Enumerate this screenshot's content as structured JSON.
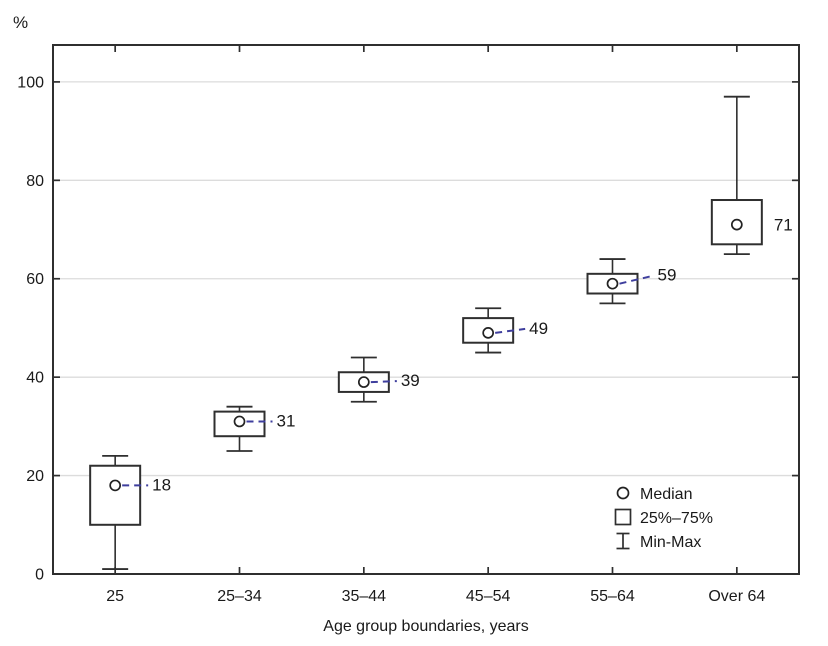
{
  "chart_data": {
    "type": "boxplot",
    "y_unit_label": "%",
    "xlabel": "Age group boundaries, years",
    "categories": [
      "25",
      "25–34",
      "35–44",
      "45–54",
      "55–64",
      "Over 64"
    ],
    "y_ticks": [
      0,
      20,
      40,
      60,
      80,
      100
    ],
    "ylim": [
      0,
      107.5
    ],
    "grid": "horizontal",
    "series": [
      {
        "category": "25",
        "min": 1,
        "q1": 10,
        "median": 18,
        "q3": 22,
        "max": 24,
        "median_label": "18",
        "connector": true
      },
      {
        "category": "25–34",
        "min": 25,
        "q1": 28,
        "median": 31,
        "q3": 33,
        "max": 34,
        "median_label": "31",
        "connector": true
      },
      {
        "category": "35–44",
        "min": 35,
        "q1": 37,
        "median": 39,
        "q3": 41,
        "max": 44,
        "median_label": "39",
        "connector": true
      },
      {
        "category": "45–54",
        "min": 45,
        "q1": 47,
        "median": 49,
        "q3": 52,
        "max": 54,
        "median_label": "49",
        "connector": true
      },
      {
        "category": "55–64",
        "min": 55,
        "q1": 57,
        "median": 59,
        "q3": 61,
        "max": 64,
        "median_label": "59",
        "connector": true
      },
      {
        "category": "Over 64",
        "min": 65,
        "q1": 67,
        "median": 71,
        "q3": 76,
        "max": 97,
        "median_label": "71",
        "connector": false
      }
    ],
    "legend": {
      "position": "bottom-right",
      "items": [
        {
          "symbol": "median-circle",
          "label": "Median"
        },
        {
          "symbol": "quartile-box",
          "label": "25%–75%"
        },
        {
          "symbol": "minmax-whisker",
          "label": "Min-Max"
        }
      ]
    },
    "colors": {
      "frame": "#2f2f2f",
      "gridline": "#dcdcdc",
      "box_stroke": "#2f2f2f",
      "box_fill": "#ffffff",
      "whisker": "#2f2f2f",
      "median_marker": "#222222",
      "connector": "#3e3e9d",
      "text": "#1a1a1a",
      "background": "#ffffff"
    }
  }
}
